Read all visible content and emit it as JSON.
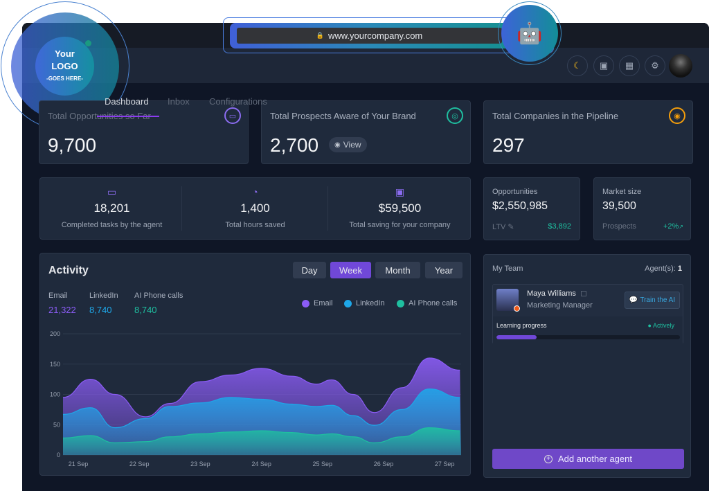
{
  "browser": {
    "url": "www.yourcompany.com",
    "lock_icon": "lock-icon",
    "robot_icon": "robot-icon"
  },
  "logo": {
    "line1": "Your",
    "line2": "LOGO",
    "line3": "-GOES HERE-"
  },
  "nav": {
    "tabs": [
      {
        "label": "Dashboard",
        "active": true
      },
      {
        "label": "Inbox"
      },
      {
        "label": "Configurations"
      }
    ]
  },
  "header": {
    "icons": [
      "moon-icon",
      "presentation-icon",
      "calendar-icon",
      "gear-icon"
    ],
    "moon_color": "#f5b91b"
  },
  "kpis": [
    {
      "title": "Total Opportunities so Far",
      "value": "9,700",
      "icon": "money-icon",
      "color": "#8b6cf0"
    },
    {
      "title": "Total Prospects Aware of Your Brand",
      "value": "2,700",
      "icon": "globe-icon",
      "color": "#1fbfa0",
      "view_label": "View"
    },
    {
      "title": "Total Companies in the Pipeline",
      "value": "297",
      "icon": "user-icon",
      "color": "#f59e0b"
    }
  ],
  "stats": [
    {
      "value": "18,201",
      "label": "Completed tasks by the agent",
      "icon": "laptop-icon"
    },
    {
      "value": "1,400",
      "label": "Total hours saved",
      "icon": "clock-icon"
    },
    {
      "value": "$59,500",
      "label": "Total saving for your company",
      "icon": "cash-icon"
    }
  ],
  "opportunities": {
    "title": "Opportunities",
    "value": "$2,550,985",
    "sub_label": "LTV",
    "sub_value": "$3,892"
  },
  "market": {
    "title": "Market size",
    "value": "39,500",
    "sub_label": "Prospects",
    "sub_value": "+2%"
  },
  "activity": {
    "title": "Activity",
    "periods": [
      "Day",
      "Week",
      "Month",
      "Year"
    ],
    "active_period": "Week",
    "totals": [
      {
        "label": "Email",
        "value": "21,322",
        "color": "#8b5cf6"
      },
      {
        "label": "LinkedIn",
        "value": "8,740",
        "color": "#1ea7e8"
      },
      {
        "label": "AI Phone calls",
        "value": "8,740",
        "color": "#1fbfa0"
      }
    ]
  },
  "chart_data": {
    "type": "area",
    "legend": "top-right",
    "grid": true,
    "ylim": [
      0,
      200
    ],
    "yticks": [
      0,
      50,
      100,
      150,
      200
    ],
    "xticks": [
      "21 Sep",
      "22 Sep",
      "23 Sep",
      "24 Sep",
      "25 Sep",
      "26 Sep",
      "27 Sep"
    ],
    "x_day_of_sep": [
      20.75,
      21.2,
      21.6,
      22.1,
      22.5,
      23.0,
      23.5,
      24.0,
      24.5,
      24.9,
      25.15,
      25.5,
      25.85,
      26.3,
      26.75,
      27.25
    ],
    "series": [
      {
        "name": "Email",
        "color": "#8b5cf6",
        "values": [
          95,
          125,
          100,
          63,
          85,
          121,
          132,
          143,
          130,
          117,
          124,
          100,
          70,
          111,
          160,
          140
        ]
      },
      {
        "name": "LinkedIn",
        "color": "#1ea7e8",
        "values": [
          67,
          78,
          45,
          60,
          80,
          86,
          95,
          92,
          84,
          80,
          82,
          65,
          49,
          75,
          109,
          95
        ]
      },
      {
        "name": "AI Phone calls",
        "color": "#1fbfa0",
        "values": [
          28,
          32,
          20,
          22,
          30,
          35,
          38,
          40,
          37,
          33,
          35,
          30,
          20,
          30,
          45,
          40
        ]
      }
    ]
  },
  "team": {
    "title": "My Team",
    "agents_label": "Agent(s):",
    "agents_count": "1",
    "member": {
      "name": "Maya Williams",
      "role": "Marketing Manager",
      "train_label": "Train the AI",
      "progress_label": "Learning progress",
      "status": "Actively",
      "progress": 0.22
    },
    "add_label": "Add another agent"
  }
}
